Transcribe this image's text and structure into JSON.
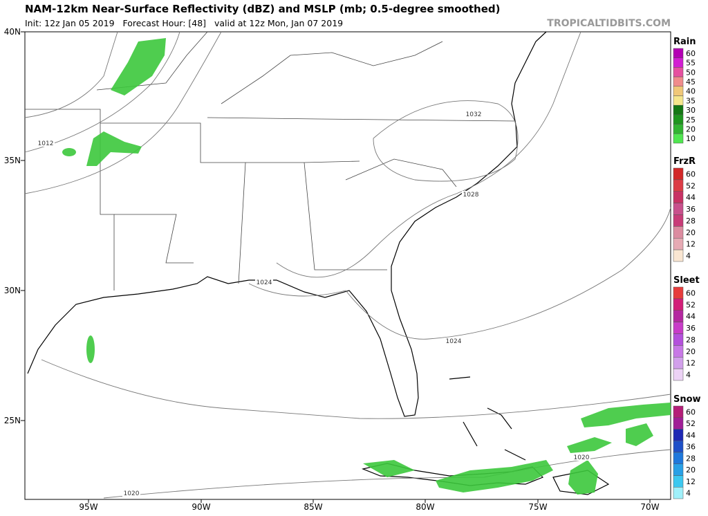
{
  "header": {
    "title": "NAM-12km Near-Surface Reflectivity (dBZ) and MSLP (mb; 0.5-degree smoothed)",
    "subtitle": "Init: 12z Jan 05 2019   Forecast Hour: [48]   valid at 12z Mon, Jan 07 2019",
    "site": "TROPICALTIDBITS.COM"
  },
  "axes": {
    "lat": [
      "40N",
      "35N",
      "30N",
      "25N"
    ],
    "lon": [
      "95W",
      "90W",
      "85W",
      "80W",
      "75W",
      "70W"
    ]
  },
  "isobars": [
    "1012",
    "1032",
    "1028",
    "1024",
    "1024",
    "1020",
    "1020"
  ],
  "legend": [
    {
      "title": "Rain",
      "items": [
        {
          "label": "60",
          "color": "#b400b4"
        },
        {
          "label": "55",
          "color": "#d21ed2"
        },
        {
          "label": "50",
          "color": "#e650a0"
        },
        {
          "label": "45",
          "color": "#f08c8c"
        },
        {
          "label": "40",
          "color": "#f0c878"
        },
        {
          "label": "35",
          "color": "#f5e68c"
        },
        {
          "label": "30",
          "color": "#147814"
        },
        {
          "label": "25",
          "color": "#1e961e"
        },
        {
          "label": "20",
          "color": "#32b432"
        },
        {
          "label": "10",
          "color": "#50e650"
        }
      ]
    },
    {
      "title": "FrzR",
      "items": [
        {
          "label": "60",
          "color": "#d22828"
        },
        {
          "label": "52",
          "color": "#dc3c46"
        },
        {
          "label": "44",
          "color": "#c83264"
        },
        {
          "label": "36",
          "color": "#c8508c"
        },
        {
          "label": "28",
          "color": "#c83c78"
        },
        {
          "label": "20",
          "color": "#dc8ca0"
        },
        {
          "label": "12",
          "color": "#e6aab4"
        },
        {
          "label": "4",
          "color": "#fae6d2"
        }
      ]
    },
    {
      "title": "Sleet",
      "items": [
        {
          "label": "60",
          "color": "#e63c3c"
        },
        {
          "label": "52",
          "color": "#d21e78"
        },
        {
          "label": "44",
          "color": "#b428a0"
        },
        {
          "label": "36",
          "color": "#c83cc8"
        },
        {
          "label": "28",
          "color": "#b450dc"
        },
        {
          "label": "20",
          "color": "#c878e6"
        },
        {
          "label": "12",
          "color": "#d2a0eb"
        },
        {
          "label": "4",
          "color": "#ecd2f5"
        }
      ]
    },
    {
      "title": "Snow",
      "items": [
        {
          "label": "60",
          "color": "#b41e78"
        },
        {
          "label": "52",
          "color": "#a01e96"
        },
        {
          "label": "44",
          "color": "#1e28b4"
        },
        {
          "label": "36",
          "color": "#1e50c8"
        },
        {
          "label": "28",
          "color": "#1e78dc"
        },
        {
          "label": "20",
          "color": "#28a0e6"
        },
        {
          "label": "12",
          "color": "#3cc8f0"
        },
        {
          "label": "4",
          "color": "#a0f0fa"
        }
      ]
    }
  ]
}
